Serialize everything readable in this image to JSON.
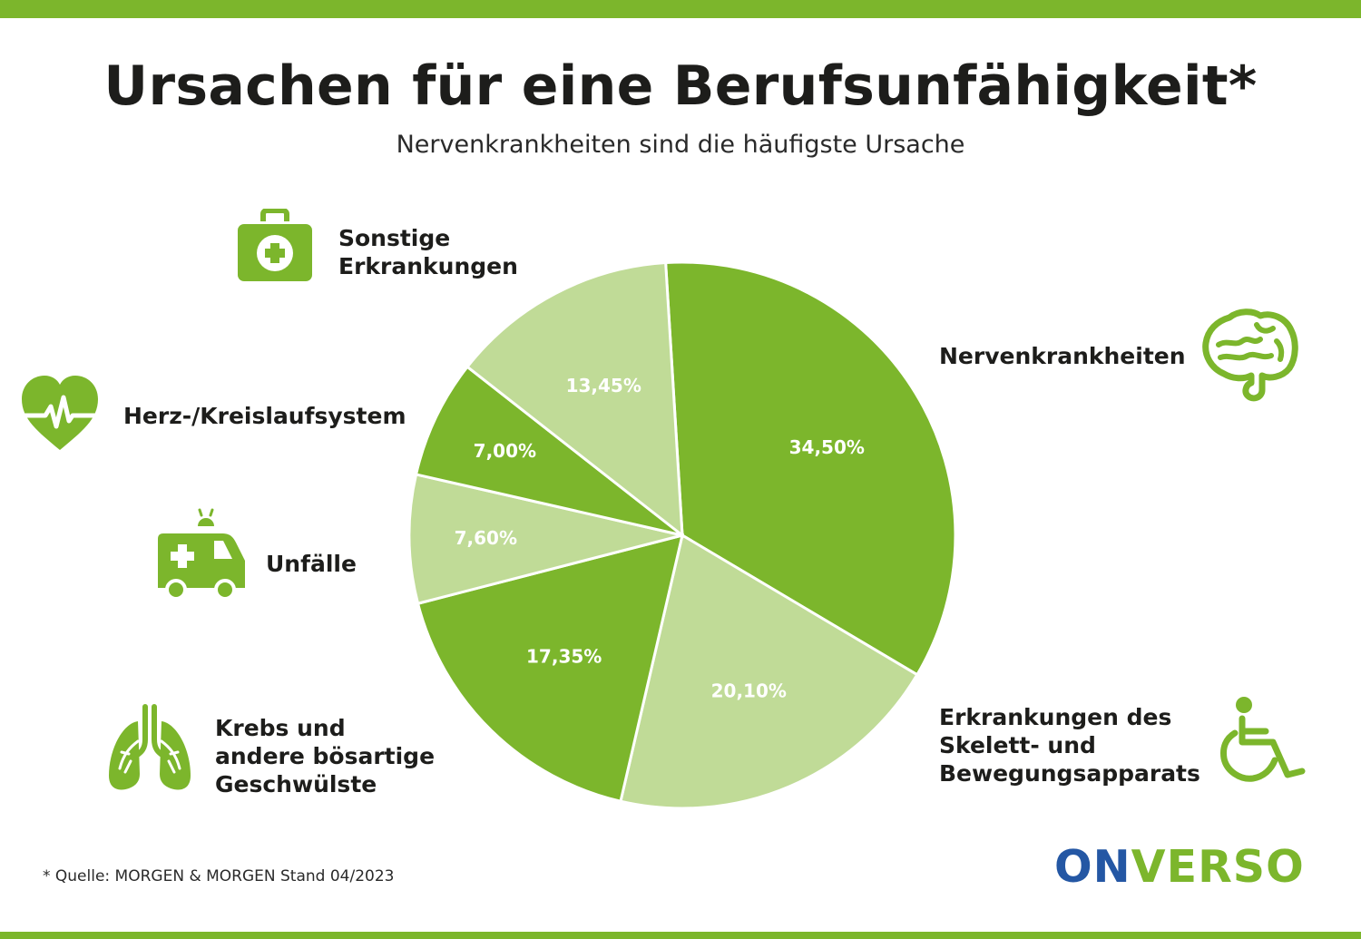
{
  "title": "Ursachen für eine Berufsunfähigkeit*",
  "subtitle": "Nervenkrankheiten sind die häufigste Ursache",
  "source": "* Quelle: MORGEN & MORGEN Stand 04/2023",
  "logo": {
    "part1": "ON",
    "part2": "VERSO"
  },
  "colors": {
    "dark": "#7cb62c",
    "light": "#c0db97",
    "logo_blue": "#2457a4"
  },
  "labels": {
    "nerven": [
      "Nervenkrankheiten"
    ],
    "skelett": [
      "Erkrankungen des",
      "Skelett- und",
      "Bewegungsapparats"
    ],
    "krebs": [
      "Krebs und",
      "andere bösartige",
      "Geschwülste"
    ],
    "unfaelle": [
      "Unfälle"
    ],
    "herz": [
      "Herz-/Kreislaufsystem"
    ],
    "sonstige": [
      "Sonstige",
      "Erkrankungen"
    ]
  },
  "icons": {
    "nerven": "brain-icon",
    "skelett": "wheelchair-icon",
    "krebs": "lungs-icon",
    "unfaelle": "ambulance-icon",
    "herz": "heart-pulse-icon",
    "sonstige": "first-aid-kit-icon"
  },
  "chart_data": {
    "type": "pie",
    "slices": [
      {
        "label": "Nervenkrankheiten",
        "value": 34.5,
        "display": "34,50%",
        "color": "#7cb62c"
      },
      {
        "label": "Erkrankungen des Skelett- und Bewegungsapparats",
        "value": 20.1,
        "display": "20,10%",
        "color": "#c0db97"
      },
      {
        "label": "Krebs und andere bösartige Geschwülste",
        "value": 17.35,
        "display": "17,35%",
        "color": "#7cb62c"
      },
      {
        "label": "Unfälle",
        "value": 7.6,
        "display": "7,60%",
        "color": "#c0db97"
      },
      {
        "label": "Herz-/Kreislaufsystem",
        "value": 7.0,
        "display": "7,00%",
        "color": "#7cb62c"
      },
      {
        "label": "Sonstige Erkrankungen",
        "value": 13.45,
        "display": "13,45%",
        "color": "#c0db97"
      }
    ]
  }
}
